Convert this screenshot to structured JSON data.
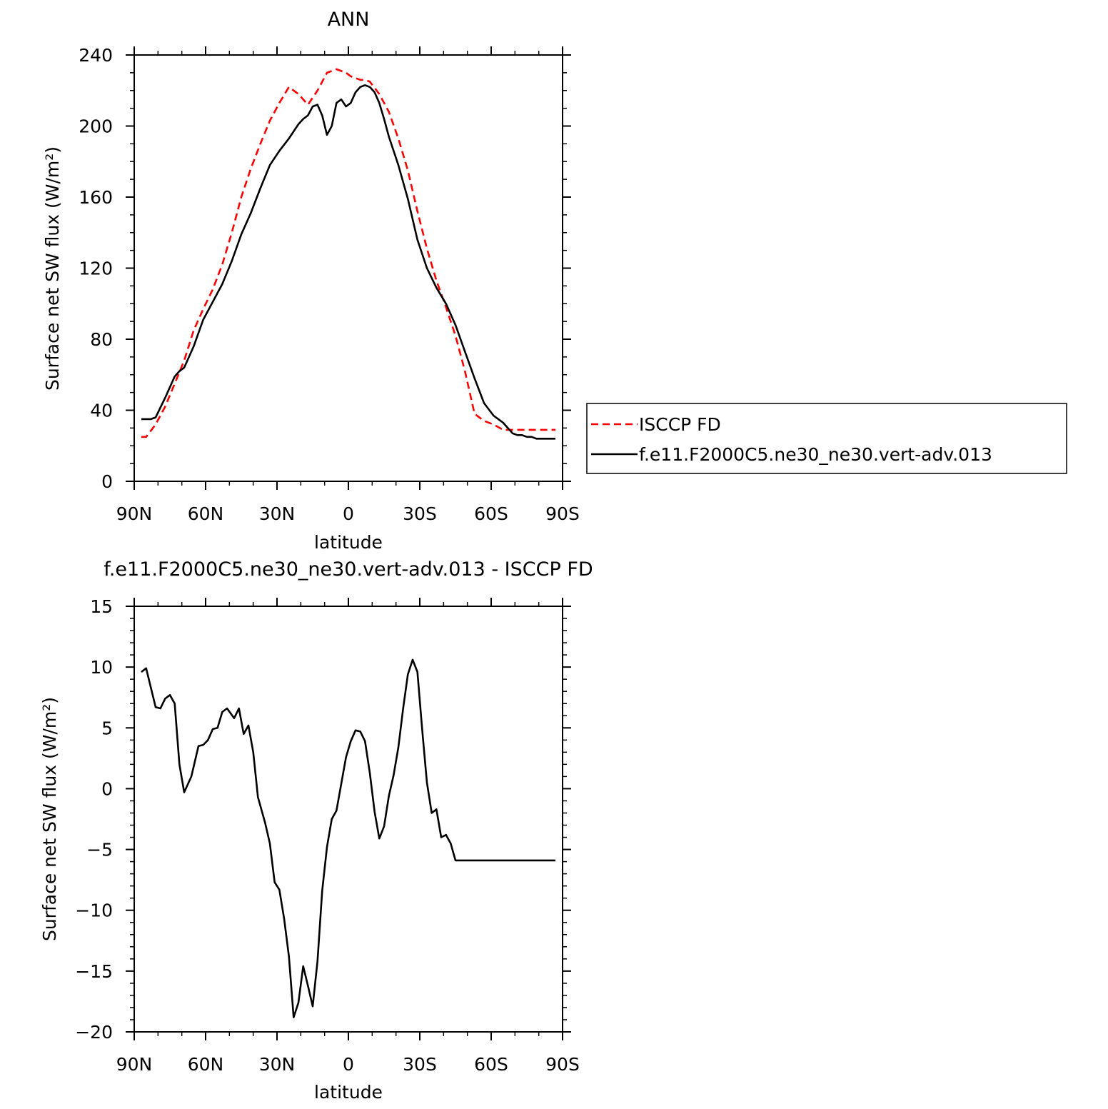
{
  "chart_data": [
    {
      "type": "line",
      "title": "ANN",
      "xlabel": "latitude",
      "ylabel": "Surface net SW flux (W/m²)",
      "xlim": [
        90,
        -90
      ],
      "ylim": [
        0,
        240
      ],
      "xticks": [
        90,
        60,
        30,
        0,
        -30,
        -60,
        -90
      ],
      "xtick_labels": [
        "90N",
        "60N",
        "30N",
        "0",
        "30S",
        "60S",
        "90S"
      ],
      "yticks": [
        0,
        40,
        80,
        120,
        160,
        200,
        240
      ],
      "ytick_labels": [
        "0",
        "40",
        "80",
        "120",
        "160",
        "200",
        "240"
      ],
      "legend": "right",
      "series": [
        {
          "name": "ISCCP FD",
          "color": "#ff0000",
          "dash": "dashed",
          "x": [
            87,
            85,
            81,
            77,
            73,
            69,
            65,
            61,
            57,
            53,
            49,
            45,
            41,
            37,
            33,
            29,
            25,
            21,
            17,
            13,
            9,
            5,
            1,
            -1,
            -3,
            -5,
            -7,
            -9,
            -13,
            -17,
            -21,
            -25,
            -29,
            -33,
            -37,
            -41,
            -45,
            -49,
            -53,
            -57,
            -61,
            -65,
            -69,
            -73,
            -77,
            -79,
            -81,
            -83,
            -85,
            -87
          ],
          "y": [
            25,
            25,
            32,
            42,
            55,
            68,
            85,
            97,
            108,
            122,
            140,
            160,
            176,
            190,
            203,
            213,
            222,
            218,
            212,
            220,
            230,
            232,
            230,
            228,
            227,
            226,
            226,
            225,
            218,
            208,
            193,
            175,
            152,
            131,
            113,
            98,
            82,
            62,
            38,
            34,
            32,
            29,
            29,
            29,
            29,
            29,
            29,
            29,
            29,
            29
          ],
          "note_x_extent": [
            87,
            -87
          ]
        },
        {
          "name": "f.e11.F2000C5.ne30_ne30.vert-adv.013",
          "color": "#000000",
          "dash": "solid",
          "x": [
            87,
            85,
            83,
            81,
            77,
            73,
            71,
            69,
            65,
            61,
            57,
            53,
            49,
            45,
            41,
            37,
            33,
            29,
            25,
            21,
            19,
            17,
            15,
            13,
            11,
            9,
            7,
            5,
            3,
            1,
            -1,
            -3,
            -5,
            -7,
            -9,
            -11,
            -13,
            -15,
            -17,
            -21,
            -25,
            -29,
            -33,
            -37,
            -41,
            -45,
            -49,
            -53,
            -57,
            -61,
            -65,
            -67,
            -69,
            -71,
            -73,
            -75,
            -77,
            -79,
            -81,
            -85,
            -87
          ],
          "y": [
            35,
            35,
            35,
            36,
            47,
            59,
            62,
            64,
            76,
            91,
            101,
            111,
            124,
            139,
            151,
            165,
            178,
            186,
            193,
            201,
            204,
            206,
            211,
            212,
            206,
            195,
            200,
            213,
            215,
            211,
            213,
            219,
            222,
            223,
            222,
            219,
            213,
            204,
            194,
            178,
            159,
            136,
            120,
            109,
            100,
            88,
            73,
            58,
            44,
            37,
            33,
            30,
            27,
            26,
            26,
            25,
            25,
            24,
            24,
            24,
            24
          ],
          "note_x_extent": [
            87,
            -87
          ]
        }
      ]
    },
    {
      "type": "line",
      "title": "f.e11.F2000C5.ne30_ne30.vert-adv.013 - ISCCP FD",
      "xlabel": "latitude",
      "ylabel": "Surface net SW flux (W/m²)",
      "xlim": [
        90,
        -90
      ],
      "ylim": [
        -20,
        15
      ],
      "xticks": [
        90,
        60,
        30,
        0,
        -30,
        -60,
        -90
      ],
      "xtick_labels": [
        "90N",
        "60N",
        "30N",
        "0",
        "30S",
        "60S",
        "90S"
      ],
      "yticks": [
        -20,
        -15,
        -10,
        -5,
        0,
        5,
        10,
        15
      ],
      "ytick_labels": [
        "−20",
        "−15",
        "−10",
        "−5",
        "0",
        "5",
        "10",
        "15"
      ],
      "series": [
        {
          "color": "#000000",
          "dash": "solid",
          "x": [
            87,
            85,
            81,
            79,
            77,
            75,
            73,
            71,
            69,
            66,
            63,
            61,
            59,
            57,
            55,
            53,
            51,
            48,
            46,
            44,
            42,
            40,
            38,
            35,
            33,
            31,
            29,
            27,
            25,
            23,
            21,
            19,
            17,
            15,
            13,
            11,
            9,
            7,
            5,
            3,
            1,
            -1,
            -3,
            -5,
            -7,
            -9,
            -11,
            -13,
            -15,
            -17,
            -19,
            -21,
            -23,
            -25,
            -27,
            -29,
            -31,
            -33,
            -35,
            -37,
            -39,
            -41,
            -43,
            -45,
            -47,
            -49,
            -51,
            -53,
            -55,
            -57,
            -59,
            -61,
            -63,
            -65,
            -67,
            -69,
            -71,
            -73,
            -75,
            -77,
            -79,
            -81,
            -83,
            -85,
            -87
          ],
          "y": [
            9.6,
            9.9,
            6.7,
            6.6,
            7.4,
            7.7,
            7.0,
            2.0,
            -0.3,
            1.0,
            3.5,
            3.6,
            4.0,
            4.9,
            5.0,
            6.3,
            6.6,
            5.8,
            6.6,
            4.5,
            5.2,
            3.0,
            -0.7,
            -2.8,
            -4.5,
            -7.7,
            -8.3,
            -10.7,
            -13.8,
            -18.8,
            -17.6,
            -14.6,
            -16.2,
            -17.9,
            -14.2,
            -8.4,
            -4.8,
            -2.5,
            -1.8,
            0.4,
            2.6,
            3.9,
            4.8,
            4.7,
            3.9,
            1.3,
            -1.9,
            -4.1,
            -3.1,
            -0.6,
            1.1,
            3.4,
            6.6,
            9.4,
            10.6,
            9.6,
            4.9,
            0.5,
            -2.0,
            -1.7,
            -4.0,
            -3.8,
            -4.5,
            -5.9,
            -5.9,
            -5.9,
            -5.9,
            -5.9,
            -5.9,
            -5.9,
            -5.9,
            -5.9,
            -5.9,
            -5.9,
            -5.9,
            -5.9,
            -5.9,
            -5.9,
            -5.9,
            -5.9,
            -5.9,
            -5.9,
            -5.9,
            -5.9,
            -5.9
          ]
        }
      ]
    }
  ]
}
